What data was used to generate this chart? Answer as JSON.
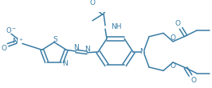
{
  "bg_color": "#ffffff",
  "line_color": "#3a7ca5",
  "bond_lw": 1.1,
  "text_color": "#3a7ca5",
  "font_size": 6.5,
  "figsize": [
    2.66,
    1.1
  ],
  "dpi": 100,
  "xlim": [
    0,
    266
  ],
  "ylim": [
    0,
    110
  ]
}
